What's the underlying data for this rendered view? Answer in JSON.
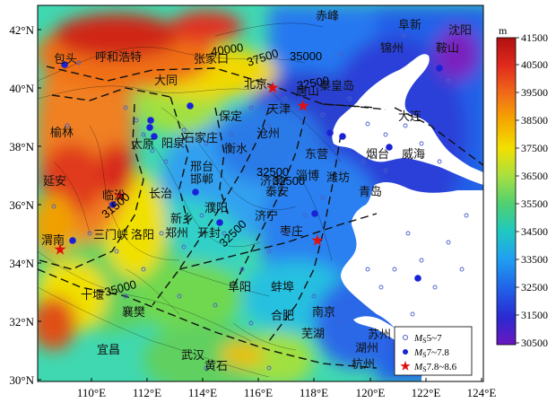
{
  "map": {
    "x_ticks": [
      "110°E",
      "112°E",
      "114°E",
      "116°E",
      "118°E",
      "120°E",
      "122°E",
      "124°E"
    ],
    "y_ticks": [
      "42°N",
      "40°N",
      "38°N",
      "36°N",
      "34°N",
      "32°N",
      "30°N"
    ],
    "cities": [
      {
        "name": "赤峰"
      },
      {
        "name": "阜新"
      },
      {
        "name": "沈阳"
      },
      {
        "name": "锦州"
      },
      {
        "name": "鞍山"
      },
      {
        "name": "包头"
      },
      {
        "name": "呼和浩特"
      },
      {
        "name": "张家口"
      },
      {
        "name": "大同"
      },
      {
        "name": "北京"
      },
      {
        "name": "唐山"
      },
      {
        "name": "秦皇岛"
      },
      {
        "name": "天津"
      },
      {
        "name": "大连"
      },
      {
        "name": "榆林"
      },
      {
        "name": "保定"
      },
      {
        "name": "沧州"
      },
      {
        "name": "太原"
      },
      {
        "name": "阳泉"
      },
      {
        "name": "石家庄"
      },
      {
        "name": "衡水"
      },
      {
        "name": "东营"
      },
      {
        "name": "烟台"
      },
      {
        "name": "威海"
      },
      {
        "name": "邢台"
      },
      {
        "name": "邯郸"
      },
      {
        "name": "济南"
      },
      {
        "name": "淄博"
      },
      {
        "name": "潍坊"
      },
      {
        "name": "延安"
      },
      {
        "name": "临汾"
      },
      {
        "name": "长治"
      },
      {
        "name": "泰安"
      },
      {
        "name": "青岛"
      },
      {
        "name": "濮阳"
      },
      {
        "name": "新乡"
      },
      {
        "name": "济宁"
      },
      {
        "name": "郑州"
      },
      {
        "name": "开封"
      },
      {
        "name": "枣庄"
      },
      {
        "name": "渭南"
      },
      {
        "name": "三门峡"
      },
      {
        "name": "洛阳"
      },
      {
        "name": "十堰"
      },
      {
        "name": "阜阳"
      },
      {
        "name": "蚌埠"
      },
      {
        "name": "襄樊"
      },
      {
        "name": "合肥"
      },
      {
        "name": "南京"
      },
      {
        "name": "苏州"
      },
      {
        "name": "宜昌"
      },
      {
        "name": "武汉"
      },
      {
        "name": "芜湖"
      },
      {
        "name": "湖州"
      },
      {
        "name": "黄石"
      },
      {
        "name": "杭州"
      }
    ],
    "contour_labels": [
      "40000",
      "37500",
      "35000",
      "32500",
      "32500",
      "32500",
      "31500",
      "32500",
      "35000"
    ]
  },
  "colorbar": {
    "unit": "m",
    "labels": [
      "41500",
      "40500",
      "39500",
      "38500",
      "37500",
      "36500",
      "35500",
      "34500",
      "33500",
      "32500",
      "31500",
      "30500"
    ],
    "colors": [
      "#b01010",
      "#e02a1c",
      "#f06a1a",
      "#f5a800",
      "#f2e000",
      "#a8e040",
      "#50d070",
      "#20c8c0",
      "#20a0f0",
      "#2060e8",
      "#2a2ad0",
      "#6a18c0"
    ]
  },
  "legend": {
    "items": [
      {
        "symbol": "open-circle",
        "label_prefix": "M",
        "label_sub": "S",
        "label_suffix": "5~7"
      },
      {
        "symbol": "filled-circle",
        "label_prefix": "M",
        "label_sub": "S",
        "label_suffix": "7~7.8"
      },
      {
        "symbol": "star",
        "label_prefix": "M",
        "label_sub": "S",
        "label_suffix": "7.8~8.6"
      }
    ]
  }
}
